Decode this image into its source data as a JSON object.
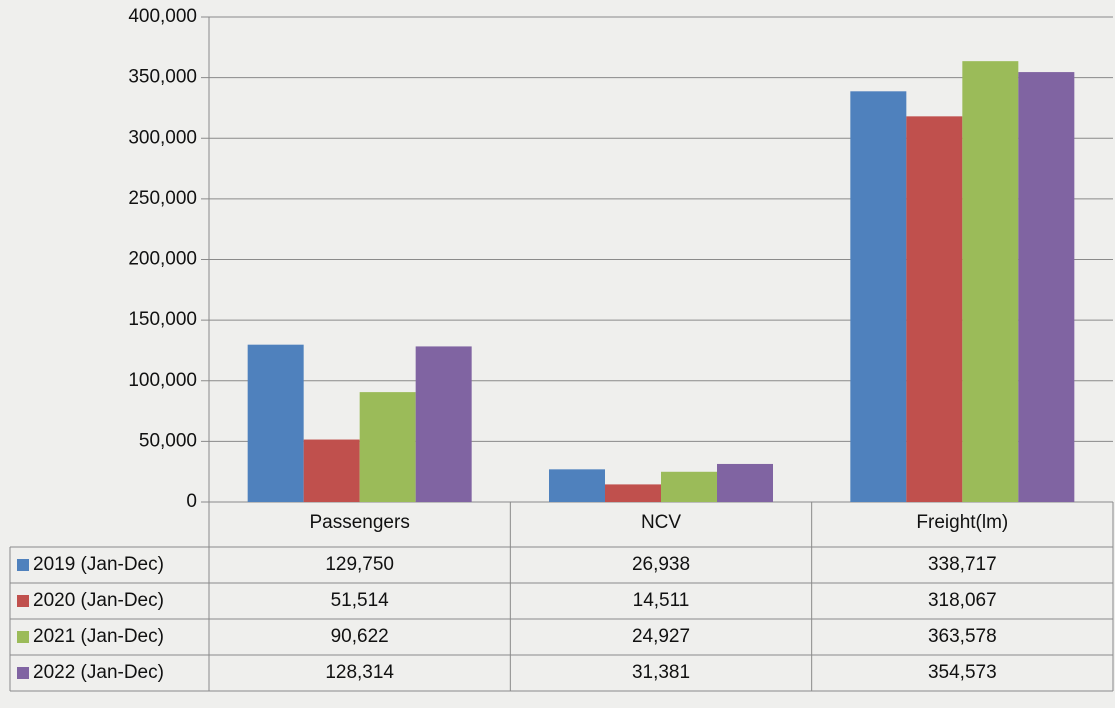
{
  "chart_data": {
    "type": "bar",
    "categories": [
      "Passengers",
      "NCV",
      "Freight(lm)"
    ],
    "series": [
      {
        "name": "2019 (Jan-Dec)",
        "color": "#4f81bd",
        "values": [
          129750,
          26938,
          338717
        ],
        "value_labels": [
          "129,750",
          "26,938",
          "338,717"
        ]
      },
      {
        "name": "2020 (Jan-Dec)",
        "color": "#c0504d",
        "values": [
          51514,
          14511,
          318067
        ],
        "value_labels": [
          "51,514",
          "14,511",
          "318,067"
        ]
      },
      {
        "name": "2021 (Jan-Dec)",
        "color": "#9bbb59",
        "values": [
          90622,
          24927,
          363578
        ],
        "value_labels": [
          "90,622",
          "24,927",
          "363,578"
        ]
      },
      {
        "name": "2022 (Jan-Dec)",
        "color": "#8064a2",
        "values": [
          128314,
          31381,
          354573
        ],
        "value_labels": [
          "128,314",
          "31,381",
          "354,573"
        ]
      }
    ],
    "ylim": [
      0,
      400000
    ],
    "yticks": [
      0,
      {
        "value": 50000,
        "label": "50,000"
      },
      {
        "value": 100000,
        "label": "100,000"
      },
      {
        "value": 150000,
        "label": "150,000"
      },
      {
        "value": 200000,
        "label": "200,000"
      },
      {
        "value": 250000,
        "label": "250,000"
      },
      {
        "value": 300000,
        "label": "300,000"
      },
      {
        "value": 350000,
        "label": "350,000"
      },
      {
        "value": 400000,
        "label": "400,000"
      }
    ],
    "grid": true
  }
}
